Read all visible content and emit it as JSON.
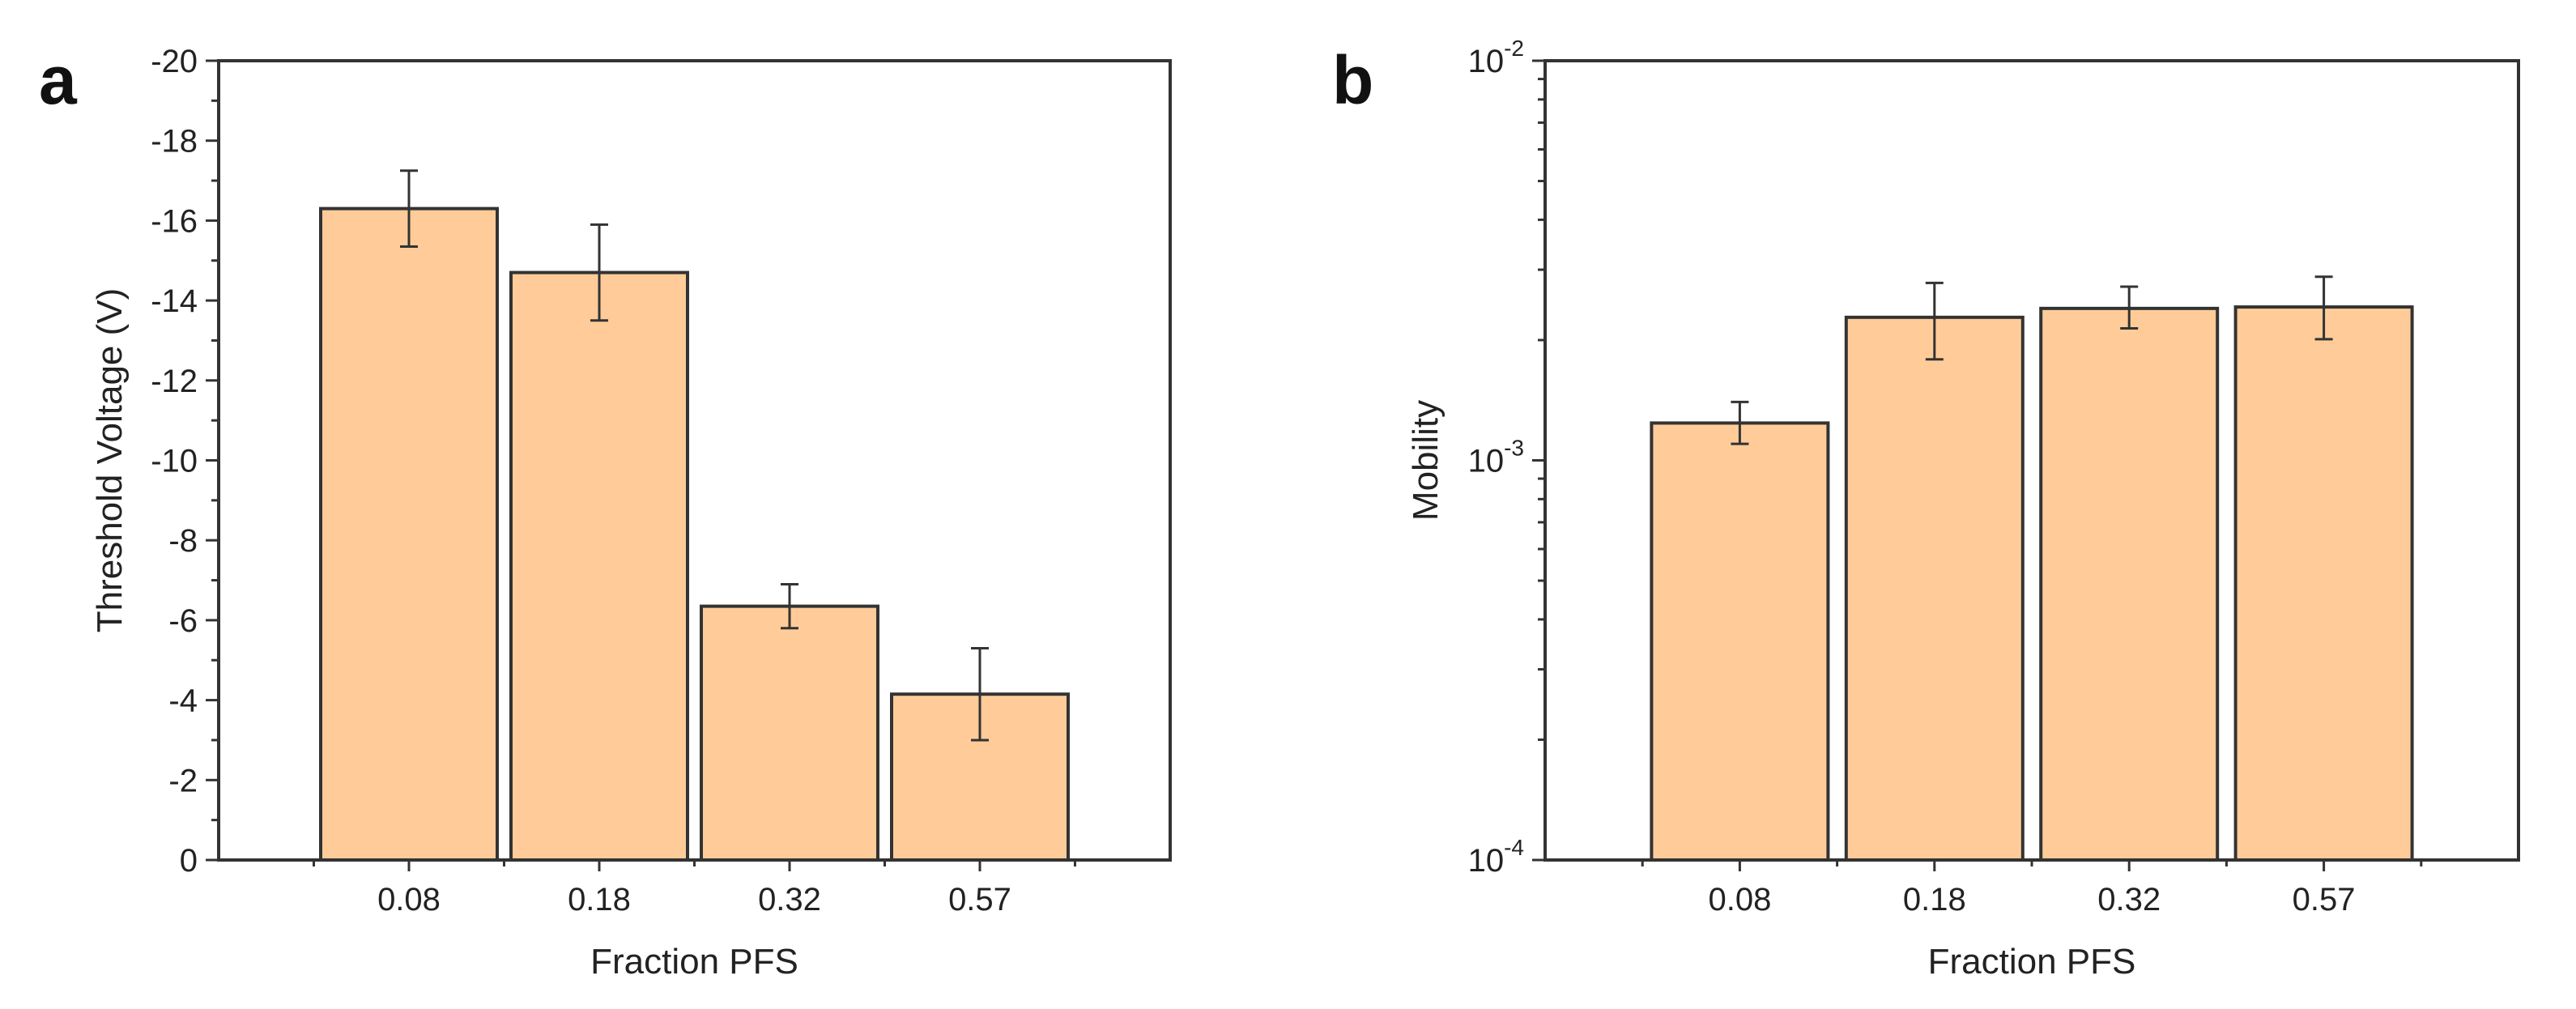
{
  "chart_data": [
    {
      "panel": "a",
      "type": "bar",
      "title": "",
      "xlabel": "Fraction PFS",
      "ylabel": "Threshold Voltage (V)",
      "categories": [
        "0.08",
        "0.18",
        "0.32",
        "0.57"
      ],
      "values": [
        -16.3,
        -14.7,
        -6.35,
        -4.15
      ],
      "errors": [
        0.95,
        1.2,
        0.55,
        1.15
      ],
      "ylim": [
        0,
        -20
      ],
      "yticks": [
        0,
        -2,
        -4,
        -6,
        -8,
        -10,
        -12,
        -14,
        -16,
        -18,
        -20
      ],
      "ytick_labels": [
        "0",
        "-2",
        "-4",
        "-6",
        "-8",
        "-10",
        "-12",
        "-14",
        "-16",
        "-18",
        "-20"
      ],
      "scale": "linear",
      "bar_color": "#FFCC99",
      "grid": false
    },
    {
      "panel": "b",
      "type": "bar",
      "title": "",
      "xlabel": "Fraction PFS",
      "ylabel": "Mobility",
      "categories": [
        "0.08",
        "0.18",
        "0.32",
        "0.57"
      ],
      "values": [
        0.00124,
        0.00228,
        0.0024,
        0.00242
      ],
      "error_low": [
        0.0011,
        0.00179,
        0.00214,
        0.00201
      ],
      "error_high": [
        0.0014,
        0.00278,
        0.00272,
        0.00288
      ],
      "ylim": [
        0.0001,
        0.01
      ],
      "yticks": [
        0.0001,
        0.001,
        0.01
      ],
      "ytick_labels": [
        {
          "base": "10",
          "exp": "-4"
        },
        {
          "base": "10",
          "exp": "-3"
        },
        {
          "base": "10",
          "exp": "-2"
        }
      ],
      "scale": "log",
      "bar_color": "#FFCC99",
      "grid": false
    }
  ]
}
